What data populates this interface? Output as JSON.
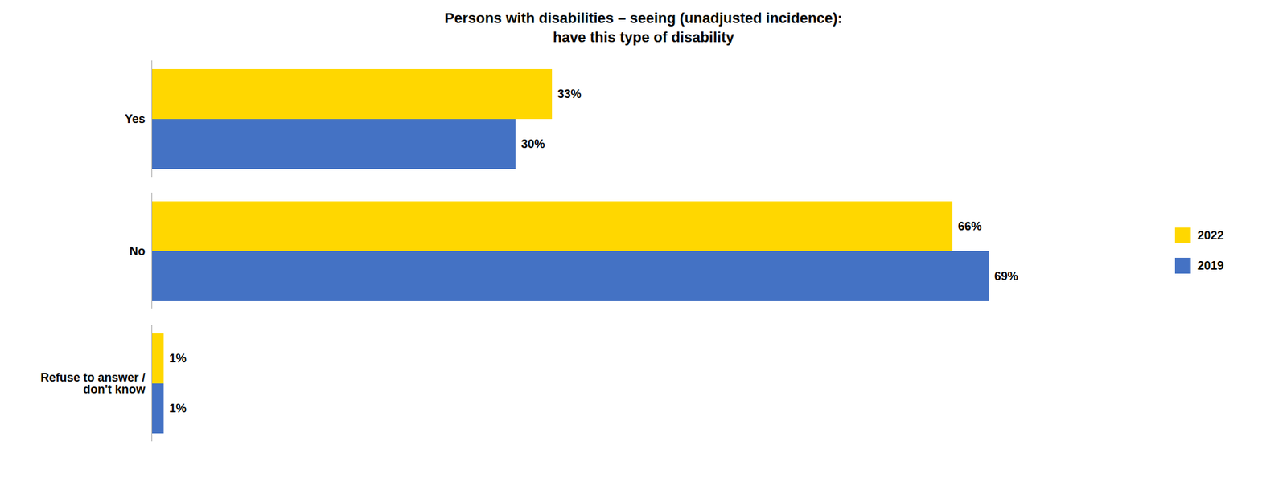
{
  "chart_data": {
    "type": "bar",
    "orientation": "horizontal",
    "title": "Persons with disabilities – seeing (unadjusted incidence):\nhave this type of disability",
    "categories": [
      "Yes",
      "No",
      "Refuse to answer /\ndon't know"
    ],
    "series": [
      {
        "name": "2022",
        "color": "#FFD700",
        "values": [
          33,
          66,
          1
        ],
        "value_labels": [
          "33%",
          "66%",
          "1%"
        ]
      },
      {
        "name": "2019",
        "color": "#4472C4",
        "values": [
          30,
          69,
          1
        ],
        "value_labels": [
          "30%",
          "69%",
          "1%"
        ]
      }
    ],
    "xlim": [
      0,
      80
    ],
    "data_labels": true,
    "tick_labels": "y",
    "grid": false,
    "legend": "right"
  }
}
